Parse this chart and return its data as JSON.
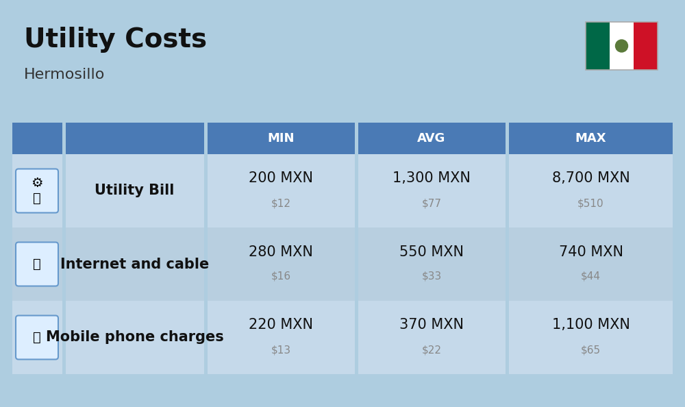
{
  "title": "Utility Costs",
  "subtitle": "Hermosillo",
  "background_color": "#aecde0",
  "header_color": "#4a7ab5",
  "header_text_color": "#ffffff",
  "row_color_1": "#c5d9ea",
  "row_color_2": "#b8cfe0",
  "title_fontsize": 28,
  "subtitle_fontsize": 16,
  "col_headers": [
    "MIN",
    "AVG",
    "MAX"
  ],
  "rows": [
    {
      "label": "Utility Bill",
      "min_mxn": "200 MXN",
      "min_usd": "$12",
      "avg_mxn": "1,300 MXN",
      "avg_usd": "$77",
      "max_mxn": "8,700 MXN",
      "max_usd": "$510"
    },
    {
      "label": "Internet and cable",
      "min_mxn": "280 MXN",
      "min_usd": "$16",
      "avg_mxn": "550 MXN",
      "avg_usd": "$33",
      "max_mxn": "740 MXN",
      "max_usd": "$44"
    },
    {
      "label": "Mobile phone charges",
      "min_mxn": "220 MXN",
      "min_usd": "$13",
      "avg_mxn": "370 MXN",
      "avg_usd": "$22",
      "max_mxn": "1,100 MXN",
      "max_usd": "$65"
    }
  ],
  "mxn_fontsize": 15,
  "usd_fontsize": 11,
  "label_fontsize": 15,
  "usd_color": "#888888",
  "flag_green": "#006847",
  "flag_white": "#ffffff",
  "flag_red": "#ce1126",
  "header_fontsize": 13
}
